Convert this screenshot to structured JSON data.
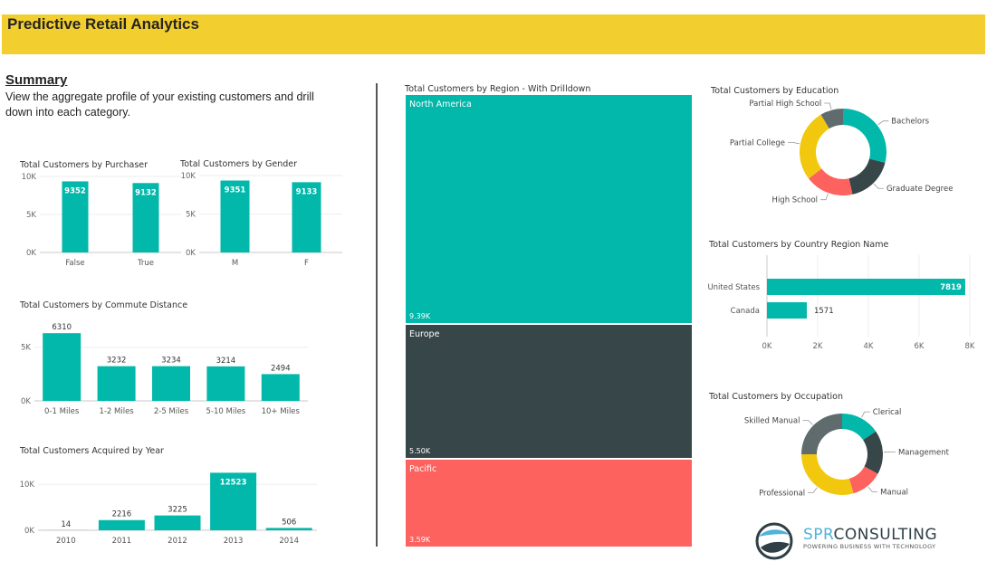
{
  "header": {
    "title": "Predictive Retail Analytics"
  },
  "summary": {
    "heading": "Summary",
    "description": "View the aggregate profile of your existing customers and drill down into each category."
  },
  "logo": {
    "name": "SPR CONSULTING",
    "tagline": "POWERING BUSINESS WITH TECHNOLOGY"
  },
  "colors": {
    "teal": "#01b8aa",
    "dark": "#374649",
    "red": "#fd625e",
    "yellow": "#f2c80f",
    "gray": "#5f6b6d",
    "banner": "#f2ce2e"
  },
  "chart_data": [
    {
      "id": "purchaser",
      "type": "bar",
      "title": "Total Customers by Purchaser",
      "categories": [
        "False",
        "True"
      ],
      "values": [
        9352,
        9132
      ],
      "labels": [
        "9352",
        "9132"
      ],
      "ylim": [
        0,
        10000
      ],
      "yticks": [
        "0K",
        "5K",
        "10K"
      ],
      "grid": true
    },
    {
      "id": "gender",
      "type": "bar",
      "title": "Total Customers by Gender",
      "categories": [
        "M",
        "F"
      ],
      "values": [
        9351,
        9133
      ],
      "labels": [
        "9351",
        "9133"
      ],
      "ylim": [
        0,
        10000
      ],
      "yticks": [
        "0K",
        "5K",
        "10K"
      ],
      "grid": true
    },
    {
      "id": "commute",
      "type": "bar",
      "title": "Total Customers by Commute Distance",
      "categories": [
        "0-1 Miles",
        "1-2 Miles",
        "2-5 Miles",
        "5-10 Miles",
        "10+ Miles"
      ],
      "values": [
        6310,
        3232,
        3234,
        3214,
        2494
      ],
      "labels": [
        "6310",
        "3232",
        "3234",
        "3214",
        "2494"
      ],
      "ylim": [
        0,
        7000
      ],
      "yticks": [
        "0K",
        "5K"
      ],
      "grid": true
    },
    {
      "id": "year",
      "type": "bar",
      "title": "Total Customers Acquired by Year",
      "categories": [
        "2010",
        "2011",
        "2012",
        "2013",
        "2014"
      ],
      "values": [
        14,
        2216,
        3225,
        12523,
        506
      ],
      "labels": [
        "14",
        "2216",
        "3225",
        "12523",
        "506"
      ],
      "ylim": [
        0,
        13000
      ],
      "yticks": [
        "0K",
        "10K"
      ],
      "grid": true
    },
    {
      "id": "region",
      "type": "treemap",
      "title": "Total Customers by Region - With Drilldown",
      "categories": [
        "North America",
        "Europe",
        "Pacific"
      ],
      "values": [
        9390,
        5500,
        3590
      ],
      "labels": [
        "9.39K",
        "5.50K",
        "3.59K"
      ]
    },
    {
      "id": "education",
      "type": "pie",
      "title": "Total Customers by Education",
      "categories": [
        "Bachelors",
        "Graduate Degree",
        "High School",
        "Partial College",
        "Partial High School"
      ],
      "values": [
        29,
        17.5,
        18,
        27,
        8.5
      ]
    },
    {
      "id": "country",
      "type": "bar",
      "title": "Total Customers by Country Region Name",
      "categories": [
        "United States",
        "Canada"
      ],
      "values": [
        7819,
        1571
      ],
      "labels": [
        "7819",
        "1571"
      ],
      "xlim": [
        0,
        8000
      ],
      "xticks": [
        "0K",
        "2K",
        "4K",
        "6K",
        "8K"
      ],
      "grid": true,
      "orientation": "horizontal"
    },
    {
      "id": "occupation",
      "type": "pie",
      "title": "Total Customers by Occupation",
      "categories": [
        "Clerical",
        "Management",
        "Manual",
        "Professional",
        "Skilled Manual"
      ],
      "values": [
        15.5,
        17.5,
        12.5,
        29.5,
        25
      ]
    }
  ]
}
